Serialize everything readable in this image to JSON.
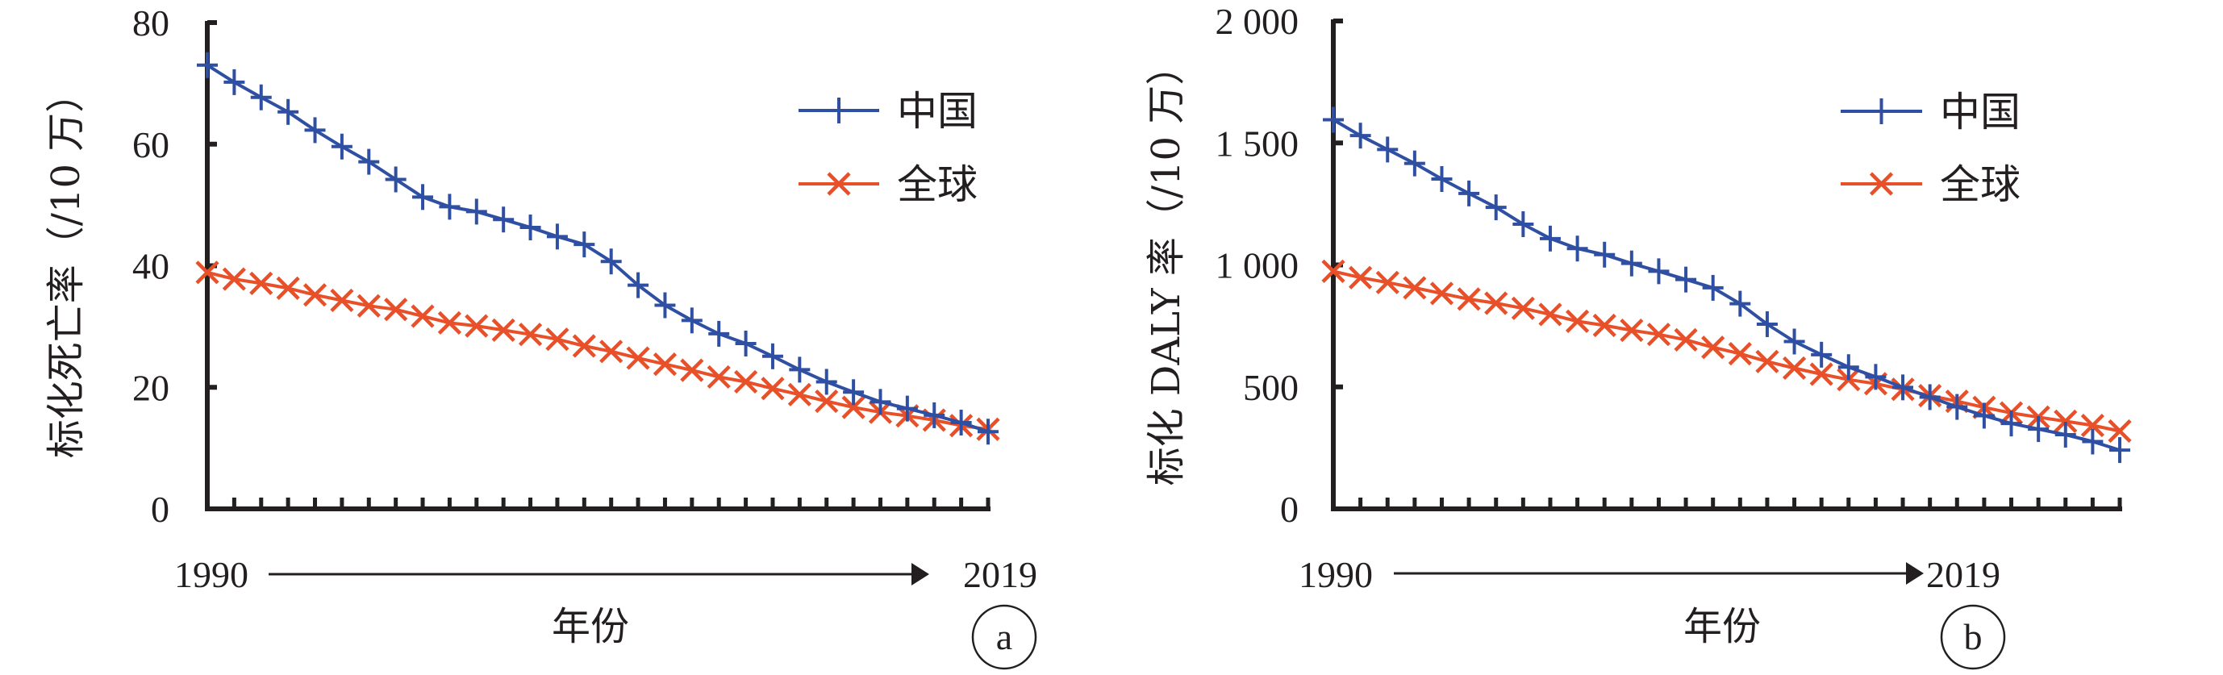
{
  "colors": {
    "china": "#2f4fa3",
    "global": "#e8502a",
    "axis": "#231f20"
  },
  "legend": {
    "china_label": "中国",
    "global_label": "全球"
  },
  "chart_data": [
    {
      "type": "line",
      "panel": "a",
      "panel_label": "a",
      "ylabel": "标化死亡率（/10 万）",
      "xlabel": "年份",
      "x_start_label": "1990",
      "x_end_label": "2019",
      "ylim": [
        0,
        80
      ],
      "yticks": [
        0,
        20,
        40,
        60,
        80
      ],
      "ytick_labels": [
        "0",
        "20",
        "40",
        "60",
        "80"
      ],
      "x": [
        1990,
        1991,
        1992,
        1993,
        1994,
        1995,
        1996,
        1997,
        1998,
        1999,
        2000,
        2001,
        2002,
        2003,
        2004,
        2005,
        2006,
        2007,
        2008,
        2009,
        2010,
        2011,
        2012,
        2013,
        2014,
        2015,
        2016,
        2017,
        2018,
        2019
      ],
      "legend_position": "top-right",
      "series": [
        {
          "name": "中国",
          "marker": "plus",
          "values": [
            73.0,
            70.2,
            67.7,
            65.3,
            62.3,
            59.6,
            57.1,
            54.2,
            51.3,
            49.7,
            48.9,
            47.6,
            46.3,
            44.8,
            43.5,
            40.7,
            36.8,
            33.5,
            31.0,
            28.8,
            27.2,
            25.1,
            22.9,
            20.9,
            19.2,
            17.6,
            16.5,
            15.4,
            14.2,
            12.7
          ]
        },
        {
          "name": "全球",
          "marker": "x",
          "values": [
            38.9,
            37.8,
            37.1,
            36.3,
            35.2,
            34.3,
            33.4,
            32.8,
            31.7,
            30.6,
            30.1,
            29.4,
            28.7,
            27.9,
            26.8,
            25.9,
            24.8,
            23.8,
            22.8,
            21.7,
            20.9,
            19.8,
            18.8,
            17.7,
            16.7,
            15.9,
            15.3,
            14.6,
            13.7,
            13.1
          ]
        }
      ]
    },
    {
      "type": "line",
      "panel": "b",
      "panel_label": "b",
      "ylabel": "标化 DALY 率（/10 万）",
      "xlabel": "年份",
      "x_start_label": "1990",
      "x_end_label": "2019",
      "ylim": [
        0,
        2000
      ],
      "yticks": [
        0,
        500,
        1000,
        1500,
        2000
      ],
      "ytick_labels": [
        "0",
        "500",
        "1 000",
        "1 500",
        "2 000"
      ],
      "x": [
        1990,
        1991,
        1992,
        1993,
        1994,
        1995,
        1996,
        1997,
        1998,
        1999,
        2000,
        2001,
        2002,
        2003,
        2004,
        2005,
        2006,
        2007,
        2008,
        2009,
        2010,
        2011,
        2012,
        2013,
        2014,
        2015,
        2016,
        2017,
        2018,
        2019
      ],
      "legend_position": "top-right",
      "series": [
        {
          "name": "中国",
          "marker": "plus",
          "values": [
            1595,
            1530,
            1473,
            1416,
            1352,
            1293,
            1236,
            1167,
            1108,
            1067,
            1042,
            1006,
            974,
            940,
            906,
            841,
            757,
            686,
            632,
            581,
            541,
            498,
            458,
            418,
            382,
            350,
            327,
            304,
            276,
            241
          ]
        },
        {
          "name": "全球",
          "marker": "x",
          "values": [
            974,
            948,
            928,
            906,
            883,
            860,
            843,
            822,
            797,
            769,
            752,
            732,
            715,
            693,
            662,
            636,
            604,
            577,
            552,
            530,
            513,
            490,
            464,
            441,
            416,
            393,
            376,
            359,
            342,
            319
          ]
        }
      ]
    }
  ]
}
